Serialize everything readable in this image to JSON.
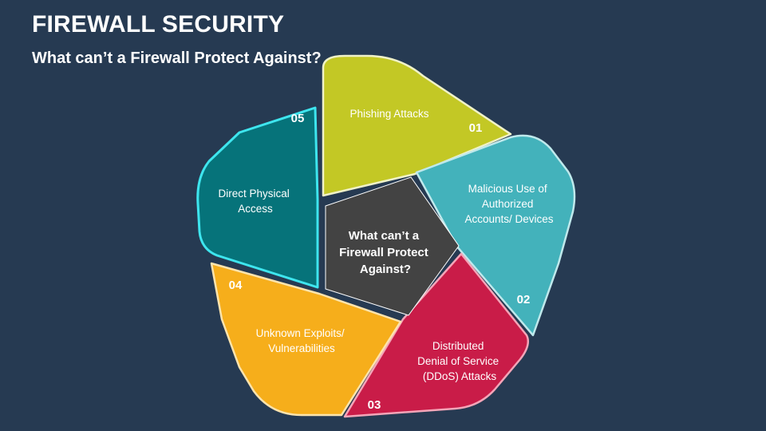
{
  "header": {
    "title": "FIREWALL SECURITY",
    "subtitle": "What can’t a Firewall Protect Against?"
  },
  "center": {
    "lines": [
      "What can’t a",
      "Firewall Protect",
      "Against?"
    ],
    "color": "#434343"
  },
  "segments": [
    {
      "number": "01",
      "lines": [
        "Phishing Attacks"
      ],
      "color": "#c3c825",
      "outline": "#f0f2c8"
    },
    {
      "number": "02",
      "lines": [
        "Malicious Use of",
        "Authorized",
        "Accounts/ Devices"
      ],
      "color": "#43b2bb",
      "outline": "#bfe9ec"
    },
    {
      "number": "03",
      "lines": [
        "Distributed",
        "Denial of Service",
        "(DDoS) Attacks"
      ],
      "color": "#c91c48",
      "outline": "#f4a5b8"
    },
    {
      "number": "04",
      "lines": [
        "Unknown Exploits/",
        "Vulnerabilities"
      ],
      "color": "#f6ae1b",
      "outline": "#fde4ad"
    },
    {
      "number": "05",
      "lines": [
        "Direct Physical",
        "Access"
      ],
      "color": "#06737a",
      "outline": "#3ee5ee"
    }
  ]
}
